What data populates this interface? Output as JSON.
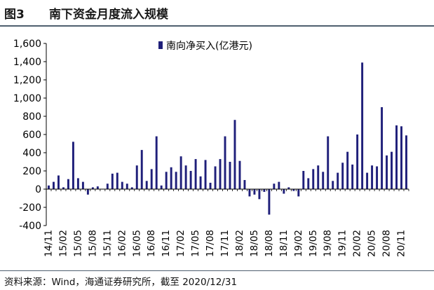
{
  "figure": {
    "number": "图3",
    "title": "南下资金月度流入规模",
    "source": "资料来源：Wind，海通证券研究所，截至 2020/12/31"
  },
  "colors": {
    "bar": "#1f1f7a",
    "axis": "#000000",
    "frame": "#4f5f6f"
  },
  "chart_data": {
    "type": "bar",
    "title": "",
    "xlabel": "",
    "ylabel": "",
    "ylim": [
      -400,
      1600
    ],
    "yticks": [
      -400,
      -200,
      0,
      200,
      400,
      600,
      800,
      1000,
      1200,
      1400,
      1600
    ],
    "ytick_labels": [
      "-400",
      "-200",
      "0",
      "200",
      "400",
      "600",
      "800",
      "1,000",
      "1,200",
      "1,400",
      "1,600"
    ],
    "legend": {
      "position": "top-center",
      "label": "南向净买入(亿港元)"
    },
    "xtick_labels": [
      "14/11",
      "15/02",
      "15/05",
      "15/08",
      "15/11",
      "16/02",
      "16/05",
      "16/08",
      "16/11",
      "17/02",
      "17/05",
      "17/08",
      "17/11",
      "18/02",
      "18/05",
      "18/08",
      "18/11",
      "19/02",
      "19/05",
      "19/08",
      "19/11",
      "20/02",
      "20/05",
      "20/08",
      "20/11"
    ],
    "categories": [
      "14/11",
      "14/12",
      "15/01",
      "15/02",
      "15/03",
      "15/04",
      "15/05",
      "15/06",
      "15/07",
      "15/08",
      "15/09",
      "15/10",
      "15/11",
      "15/12",
      "16/01",
      "16/02",
      "16/03",
      "16/04",
      "16/05",
      "16/06",
      "16/07",
      "16/08",
      "16/09",
      "16/10",
      "16/11",
      "16/12",
      "17/01",
      "17/02",
      "17/03",
      "17/04",
      "17/05",
      "17/06",
      "17/07",
      "17/08",
      "17/09",
      "17/10",
      "17/11",
      "17/12",
      "18/01",
      "18/02",
      "18/03",
      "18/04",
      "18/05",
      "18/06",
      "18/07",
      "18/08",
      "18/09",
      "18/10",
      "18/11",
      "18/12",
      "19/01",
      "19/02",
      "19/03",
      "19/04",
      "19/05",
      "19/06",
      "19/07",
      "19/08",
      "19/09",
      "19/10",
      "19/11",
      "19/12",
      "20/01",
      "20/02",
      "20/03",
      "20/04",
      "20/05",
      "20/06",
      "20/07",
      "20/08",
      "20/09",
      "20/10",
      "20/11",
      "20/12"
    ],
    "series": [
      {
        "name": "南向净买入(亿港元)",
        "values": [
          40,
          80,
          150,
          20,
          110,
          520,
          120,
          80,
          -60,
          20,
          30,
          0,
          60,
          170,
          180,
          80,
          60,
          20,
          260,
          430,
          90,
          220,
          580,
          40,
          190,
          240,
          190,
          360,
          260,
          200,
          330,
          140,
          320,
          70,
          250,
          330,
          580,
          300,
          760,
          310,
          100,
          -80,
          -60,
          -110,
          -30,
          -280,
          60,
          80,
          -50,
          20,
          -20,
          -80,
          200,
          120,
          220,
          260,
          190,
          580,
          90,
          180,
          290,
          410,
          270,
          600,
          1390,
          180,
          260,
          250,
          900,
          370,
          410,
          700,
          690,
          590
        ]
      }
    ]
  }
}
